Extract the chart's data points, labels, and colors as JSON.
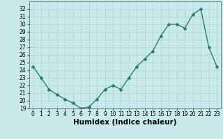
{
  "x": [
    0,
    1,
    2,
    3,
    4,
    5,
    6,
    7,
    8,
    9,
    10,
    11,
    12,
    13,
    14,
    15,
    16,
    17,
    18,
    19,
    20,
    21,
    22,
    23
  ],
  "y": [
    24.5,
    23.0,
    21.5,
    20.8,
    20.2,
    19.7,
    19.0,
    19.2,
    20.2,
    21.5,
    22.0,
    21.5,
    23.0,
    24.5,
    25.5,
    26.5,
    28.5,
    30.0,
    30.0,
    29.5,
    31.3,
    32.0,
    27.0,
    24.5
  ],
  "xlabel": "Humidex (Indice chaleur)",
  "ylim": [
    19,
    33
  ],
  "xlim": [
    -0.5,
    23.5
  ],
  "yticks": [
    19,
    20,
    21,
    22,
    23,
    24,
    25,
    26,
    27,
    28,
    29,
    30,
    31,
    32
  ],
  "xticks": [
    0,
    1,
    2,
    3,
    4,
    5,
    6,
    7,
    8,
    9,
    10,
    11,
    12,
    13,
    14,
    15,
    16,
    17,
    18,
    19,
    20,
    21,
    22,
    23
  ],
  "line_color": "#2e7d6e",
  "marker": "D",
  "marker_size": 2.0,
  "bg_color": "#c8eaea",
  "grid_color": "#b0d8d8",
  "tick_fontsize": 5.5,
  "xlabel_fontsize": 7.5,
  "linewidth": 1.0
}
